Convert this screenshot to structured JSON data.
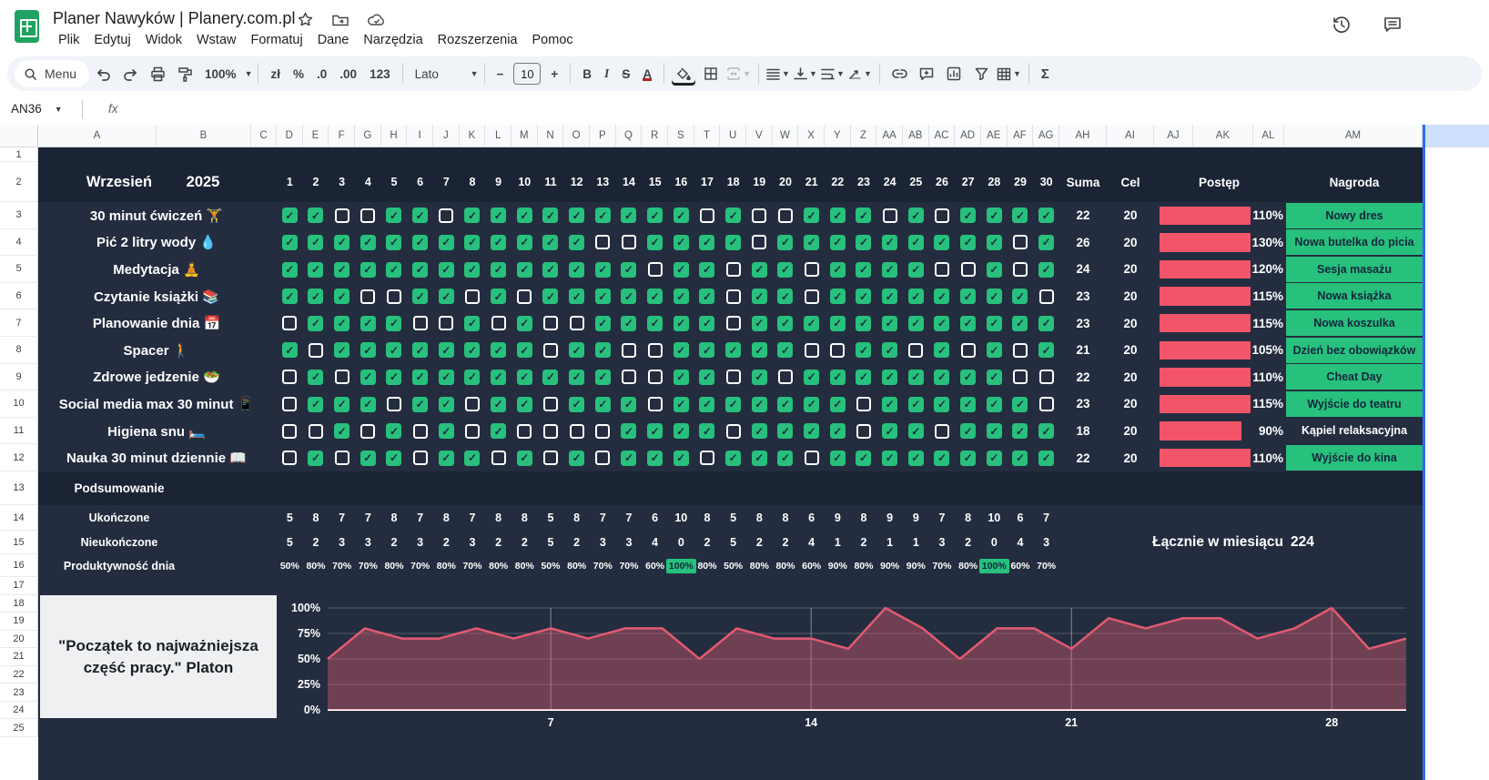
{
  "titlebar": {
    "title": "Planer Nawyków | Planery.com.pl",
    "menus": [
      "Plik",
      "Edytuj",
      "Widok",
      "Wstaw",
      "Formatuj",
      "Dane",
      "Narzędzia",
      "Rozszerzenia",
      "Pomoc"
    ]
  },
  "toolbar": {
    "search_label": "Menu",
    "zoom": "100%",
    "currency": "zł",
    "percent": "%",
    "dec_decrease": ".0",
    "dec_increase": ".00",
    "number_format": "123",
    "font": "Lato",
    "font_size": "10",
    "minus": "−",
    "plus": "+",
    "bold": "B",
    "italic": "I",
    "strikethrough": "S",
    "text_color": "A",
    "sigma": "Σ"
  },
  "formula_bar": {
    "cell_ref": "AN36",
    "fx": "fx"
  },
  "sheet": {
    "col_headers": [
      "A",
      "B",
      "C",
      "D",
      "E",
      "F",
      "G",
      "H",
      "I",
      "J",
      "K",
      "L",
      "M",
      "N",
      "O",
      "P",
      "Q",
      "R",
      "S",
      "T",
      "U",
      "V",
      "W",
      "X",
      "Y",
      "Z",
      "AA",
      "AB",
      "AC",
      "AD",
      "AE",
      "AF",
      "AG",
      "AH",
      "AI",
      "AJ",
      "AK",
      "AL",
      "AM"
    ],
    "row_numbers": [
      1,
      2,
      3,
      4,
      5,
      6,
      7,
      8,
      9,
      10,
      11,
      12,
      13,
      14,
      15,
      16,
      17,
      18,
      19,
      20,
      21,
      22,
      23,
      24,
      25
    ],
    "month": "Wrzesień",
    "year": "2025",
    "days": [
      1,
      2,
      3,
      4,
      5,
      6,
      7,
      8,
      9,
      10,
      11,
      12,
      13,
      14,
      15,
      16,
      17,
      18,
      19,
      20,
      21,
      22,
      23,
      24,
      25,
      26,
      27,
      28,
      29,
      30
    ],
    "headers": {
      "suma": "Suma",
      "cel": "Cel",
      "postep": "Postęp",
      "nagroda": "Nagroda"
    },
    "habits": [
      {
        "label": "30 minut ćwiczeń",
        "emoji": "🏋️",
        "checks": [
          1,
          1,
          0,
          0,
          1,
          1,
          0,
          1,
          1,
          1,
          1,
          1,
          1,
          1,
          1,
          1,
          0,
          1,
          0,
          0,
          1,
          1,
          1,
          0,
          1,
          0,
          1,
          1,
          1,
          1
        ],
        "suma": 22,
        "cel": 20,
        "postep": "110%",
        "pct": 110,
        "nagroda": "Nowy dres",
        "achieved": true
      },
      {
        "label": "Pić 2 litry wody",
        "emoji": "💧",
        "checks": [
          1,
          1,
          1,
          1,
          1,
          1,
          1,
          1,
          1,
          1,
          1,
          1,
          0,
          0,
          1,
          1,
          1,
          1,
          0,
          1,
          1,
          1,
          1,
          1,
          1,
          1,
          1,
          1,
          0,
          1
        ],
        "suma": 26,
        "cel": 20,
        "postep": "130%",
        "pct": 130,
        "nagroda": "Nowa butelka do picia",
        "achieved": true
      },
      {
        "label": "Medytacja",
        "emoji": "🧘",
        "checks": [
          1,
          1,
          1,
          1,
          1,
          1,
          1,
          1,
          1,
          1,
          1,
          1,
          1,
          1,
          0,
          1,
          1,
          0,
          1,
          1,
          0,
          1,
          1,
          1,
          1,
          0,
          0,
          1,
          0,
          1
        ],
        "suma": 24,
        "cel": 20,
        "postep": "120%",
        "pct": 120,
        "nagroda": "Sesja masażu",
        "achieved": true
      },
      {
        "label": "Czytanie książki",
        "emoji": "📚",
        "checks": [
          1,
          1,
          1,
          0,
          0,
          1,
          1,
          0,
          1,
          0,
          1,
          1,
          1,
          1,
          1,
          1,
          1,
          0,
          1,
          1,
          0,
          1,
          1,
          1,
          1,
          1,
          1,
          1,
          1,
          0
        ],
        "suma": 23,
        "cel": 20,
        "postep": "115%",
        "pct": 115,
        "nagroda": "Nowa książka",
        "achieved": true
      },
      {
        "label": "Planowanie dnia",
        "emoji": "📅",
        "checks": [
          0,
          1,
          1,
          1,
          1,
          0,
          0,
          1,
          0,
          1,
          0,
          0,
          1,
          1,
          1,
          1,
          1,
          0,
          1,
          1,
          1,
          1,
          1,
          1,
          1,
          1,
          1,
          1,
          1,
          1
        ],
        "suma": 23,
        "cel": 20,
        "postep": "115%",
        "pct": 115,
        "nagroda": "Nowa koszulka",
        "achieved": true
      },
      {
        "label": "Spacer",
        "emoji": "🚶",
        "checks": [
          1,
          0,
          1,
          1,
          1,
          1,
          1,
          1,
          1,
          1,
          0,
          1,
          1,
          0,
          0,
          1,
          1,
          1,
          1,
          1,
          0,
          0,
          1,
          1,
          0,
          1,
          0,
          1,
          0,
          1
        ],
        "suma": 21,
        "cel": 20,
        "postep": "105%",
        "pct": 105,
        "nagroda": "Dzień bez obowiązków",
        "achieved": true
      },
      {
        "label": "Zdrowe jedzenie",
        "emoji": "🥗",
        "checks": [
          0,
          1,
          0,
          1,
          1,
          1,
          1,
          1,
          1,
          1,
          1,
          1,
          1,
          0,
          0,
          1,
          1,
          0,
          1,
          0,
          1,
          1,
          1,
          1,
          1,
          1,
          1,
          1,
          0,
          0
        ],
        "suma": 22,
        "cel": 20,
        "postep": "110%",
        "pct": 110,
        "nagroda": "Cheat Day",
        "achieved": true
      },
      {
        "label": "Social media max 30 minut",
        "emoji": "📱",
        "checks": [
          0,
          1,
          1,
          1,
          0,
          1,
          1,
          0,
          1,
          1,
          0,
          1,
          1,
          1,
          0,
          1,
          1,
          1,
          1,
          1,
          1,
          1,
          0,
          1,
          1,
          1,
          1,
          1,
          1,
          0
        ],
        "suma": 23,
        "cel": 20,
        "postep": "115%",
        "pct": 115,
        "nagroda": "Wyjście do teatru",
        "achieved": true
      },
      {
        "label": "Higiena snu",
        "emoji": "🛏️",
        "checks": [
          0,
          0,
          1,
          0,
          1,
          0,
          1,
          0,
          1,
          0,
          0,
          0,
          0,
          1,
          1,
          1,
          1,
          0,
          1,
          1,
          1,
          1,
          0,
          1,
          1,
          0,
          1,
          1,
          1,
          1
        ],
        "suma": 18,
        "cel": 20,
        "postep": "90%",
        "pct": 90,
        "nagroda": "Kąpiel relaksacyjna",
        "achieved": false
      },
      {
        "label": "Nauka 30 minut dziennie",
        "emoji": "📖",
        "checks": [
          0,
          1,
          0,
          1,
          1,
          0,
          1,
          1,
          0,
          1,
          0,
          1,
          0,
          1,
          1,
          1,
          0,
          1,
          1,
          1,
          0,
          1,
          1,
          1,
          1,
          1,
          1,
          1,
          1,
          1
        ],
        "suma": 22,
        "cel": 20,
        "postep": "110%",
        "pct": 110,
        "nagroda": "Wyjście do kina",
        "achieved": true
      }
    ],
    "summary": {
      "title": "Podsumowanie",
      "done_label": "Ukończone",
      "undone_label": "Nieukończone",
      "productivity_label": "Produktywność dnia",
      "done": [
        5,
        8,
        7,
        7,
        8,
        7,
        8,
        7,
        8,
        8,
        5,
        8,
        7,
        7,
        6,
        10,
        8,
        5,
        8,
        8,
        6,
        9,
        8,
        9,
        9,
        7,
        8,
        10,
        6,
        7
      ],
      "undone": [
        5,
        2,
        3,
        3,
        2,
        3,
        2,
        3,
        2,
        2,
        5,
        2,
        3,
        3,
        4,
        0,
        2,
        5,
        2,
        2,
        4,
        1,
        2,
        1,
        1,
        3,
        2,
        0,
        4,
        3
      ],
      "productivity": [
        "50%",
        "80%",
        "70%",
        "70%",
        "80%",
        "70%",
        "80%",
        "70%",
        "80%",
        "80%",
        "50%",
        "80%",
        "70%",
        "70%",
        "60%",
        "100%",
        "80%",
        "50%",
        "80%",
        "80%",
        "60%",
        "90%",
        "80%",
        "90%",
        "90%",
        "70%",
        "80%",
        "100%",
        "60%",
        "70%"
      ],
      "highlight_days": [
        16,
        28
      ],
      "total_label": "Łącznie w miesiącu",
      "total_value": "224"
    },
    "quote": "\"Początek to najważniejsza część pracy.\" Platon"
  },
  "chart_data": {
    "type": "area",
    "title": "",
    "x": [
      1,
      2,
      3,
      4,
      5,
      6,
      7,
      8,
      9,
      10,
      11,
      12,
      13,
      14,
      15,
      16,
      17,
      18,
      19,
      20,
      21,
      22,
      23,
      24,
      25,
      26,
      27,
      28,
      29,
      30
    ],
    "values": [
      50,
      80,
      70,
      70,
      80,
      70,
      80,
      70,
      80,
      80,
      50,
      80,
      70,
      70,
      60,
      100,
      80,
      50,
      80,
      80,
      60,
      90,
      80,
      90,
      90,
      70,
      80,
      100,
      60,
      70
    ],
    "ylim": [
      0,
      100
    ],
    "ytick_labels": [
      "0%",
      "25%",
      "50%",
      "75%",
      "100%"
    ],
    "xticks": [
      7,
      14,
      21,
      28
    ],
    "grid": true,
    "legend": "none",
    "line_color": "#e25a72",
    "fill_color": "rgba(226,90,114,0.40)"
  },
  "colors": {
    "sheet_bg": "#232d3f",
    "band_bg": "#1b2434",
    "green": "#27c07d",
    "red": "#f2556a",
    "selection_blue": "#2f6bf0"
  }
}
